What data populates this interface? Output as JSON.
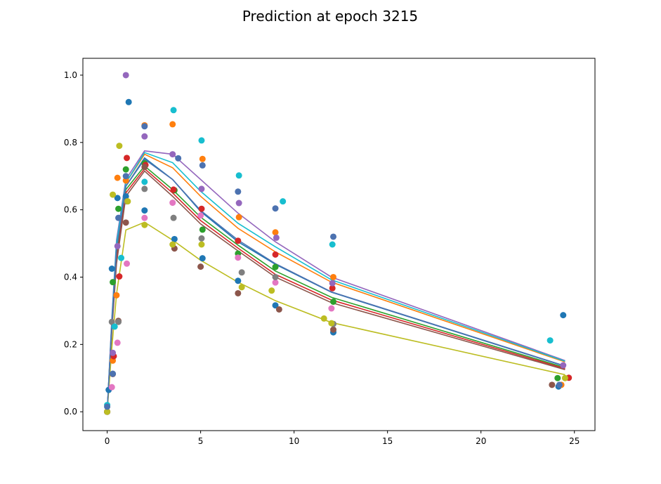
{
  "chart_data": {
    "type": "scatter",
    "title": "Prediction at epoch 3215",
    "xlabel": "",
    "ylabel": "",
    "xlim": [
      -1.3,
      26.1
    ],
    "ylim": [
      -0.056,
      1.05
    ],
    "x_ticks": [
      0,
      5,
      10,
      15,
      20,
      25
    ],
    "x_tick_labels": [
      "0",
      "5",
      "10",
      "15",
      "20",
      "25"
    ],
    "y_ticks": [
      0.0,
      0.2,
      0.4,
      0.6,
      0.8,
      1.0
    ],
    "y_tick_labels": [
      "0.0",
      "0.2",
      "0.4",
      "0.6",
      "0.8",
      "1.0"
    ],
    "grid": false,
    "line_x": [
      0,
      0.25,
      0.5,
      1,
      2,
      3.5,
      5,
      7,
      9,
      12,
      24.5
    ],
    "lines": [
      {
        "color": "#1f77b4",
        "y": [
          0.0,
          0.26,
          0.48,
          0.67,
          0.754,
          0.69,
          0.595,
          0.505,
          0.438,
          0.355,
          0.135
        ]
      },
      {
        "color": "#ff7f0e",
        "y": [
          0.0,
          0.27,
          0.5,
          0.68,
          0.765,
          0.725,
          0.64,
          0.545,
          0.475,
          0.385,
          0.148
        ]
      },
      {
        "color": "#2ca02c",
        "y": [
          0.0,
          0.25,
          0.46,
          0.66,
          0.73,
          0.66,
          0.578,
          0.495,
          0.418,
          0.34,
          0.131
        ]
      },
      {
        "color": "#d62728",
        "y": [
          0.0,
          0.25,
          0.45,
          0.65,
          0.722,
          0.65,
          0.568,
          0.486,
          0.408,
          0.332,
          0.128
        ]
      },
      {
        "color": "#9467bd",
        "y": [
          0.0,
          0.28,
          0.51,
          0.69,
          0.775,
          0.765,
          0.69,
          0.59,
          0.505,
          0.4,
          0.152
        ]
      },
      {
        "color": "#8c564b",
        "y": [
          0.0,
          0.24,
          0.44,
          0.64,
          0.715,
          0.64,
          0.558,
          0.478,
          0.4,
          0.324,
          0.125
        ]
      },
      {
        "color": "#17becf",
        "y": [
          0.0,
          0.27,
          0.5,
          0.68,
          0.77,
          0.74,
          0.655,
          0.56,
          0.49,
          0.392,
          0.15
        ]
      },
      {
        "color": "#bcbd22",
        "y": [
          0.0,
          0.19,
          0.35,
          0.54,
          0.563,
          0.51,
          0.45,
          0.385,
          0.33,
          0.265,
          0.11
        ]
      },
      {
        "color": "#4c72b0",
        "y": [
          0.0,
          0.26,
          0.48,
          0.67,
          0.75,
          0.69,
          0.598,
          0.51,
          0.44,
          0.356,
          0.136
        ]
      }
    ],
    "points": [
      {
        "color": "#1f77b4",
        "x": [
          0,
          0.08,
          0.25,
          0.55,
          1.0,
          1.15,
          2.0,
          3.6,
          5.1,
          7.0,
          9.0,
          12.1,
          24.15,
          24.4
        ],
        "y": [
          0.0,
          0.065,
          0.425,
          0.635,
          0.64,
          0.92,
          0.598,
          0.513,
          0.456,
          0.389,
          0.316,
          0.236,
          0.075,
          0.287
        ]
      },
      {
        "color": "#ff7f0e",
        "x": [
          0,
          0.3,
          0.5,
          0.55,
          1.0,
          2.0,
          3.5,
          5.1,
          7.05,
          9.0,
          12.1,
          24.3
        ],
        "y": [
          0.0,
          0.152,
          0.346,
          0.695,
          0.687,
          0.851,
          0.854,
          0.751,
          0.578,
          0.533,
          0.4,
          0.08
        ]
      },
      {
        "color": "#2ca02c",
        "x": [
          0,
          0.3,
          0.6,
          1.0,
          2.0,
          3.6,
          5.1,
          7.0,
          9.0,
          12.1,
          24.1
        ],
        "y": [
          0.0,
          0.385,
          0.603,
          0.72,
          0.738,
          0.658,
          0.541,
          0.47,
          0.43,
          0.327,
          0.1
        ]
      },
      {
        "color": "#d62728",
        "x": [
          0,
          0.35,
          0.65,
          1.05,
          2.05,
          3.55,
          5.05,
          7.0,
          9.0,
          12.05,
          24.7
        ],
        "y": [
          0.0,
          0.165,
          0.402,
          0.754,
          0.733,
          0.66,
          0.603,
          0.508,
          0.467,
          0.367,
          0.101
        ]
      },
      {
        "color": "#9467bd",
        "x": [
          0,
          0.3,
          0.55,
          1.0,
          2.0,
          3.5,
          5.05,
          7.05,
          9.05,
          12.05,
          24.4
        ],
        "y": [
          0.0,
          0.175,
          0.492,
          1.0,
          0.818,
          0.765,
          0.662,
          0.62,
          0.517,
          0.382,
          0.138
        ]
      },
      {
        "color": "#8c564b",
        "x": [
          0,
          0.3,
          0.6,
          1.0,
          2.0,
          3.6,
          5.0,
          7.0,
          9.2,
          12.1,
          23.8
        ],
        "y": [
          0.0,
          0.112,
          0.27,
          0.562,
          0.727,
          0.485,
          0.431,
          0.352,
          0.304,
          0.244,
          0.08
        ]
      },
      {
        "color": "#e377c2",
        "x": [
          0,
          0.25,
          0.55,
          1.05,
          2.0,
          3.5,
          5.0,
          7.0,
          9.0,
          12.0
        ],
        "y": [
          0.0,
          0.073,
          0.205,
          0.44,
          0.576,
          0.621,
          0.583,
          0.458,
          0.384,
          0.307
        ]
      },
      {
        "color": "#7f7f7f",
        "x": [
          0,
          0.25,
          0.6,
          1.05,
          2.0,
          3.55,
          5.05,
          7.2,
          9.0,
          12.1
        ],
        "y": [
          0.0,
          0.267,
          0.267,
          0.625,
          0.662,
          0.576,
          0.515,
          0.414,
          0.4,
          0.261
        ]
      },
      {
        "color": "#bcbd22",
        "x": [
          0,
          0.3,
          0.65,
          1.1,
          2.0,
          3.5,
          5.05,
          7.2,
          8.8,
          11.6,
          12.0,
          24.5
        ],
        "y": [
          0.0,
          0.645,
          0.79,
          0.625,
          0.555,
          0.497,
          0.497,
          0.37,
          0.36,
          0.277,
          0.263,
          0.1
        ]
      },
      {
        "color": "#17becf",
        "x": [
          0,
          0.4,
          0.75,
          2.0,
          3.55,
          5.05,
          7.05,
          9.4,
          12.05,
          23.7
        ],
        "y": [
          0.02,
          0.253,
          0.457,
          0.683,
          0.896,
          0.806,
          0.702,
          0.625,
          0.497,
          0.212
        ]
      },
      {
        "color": "#4c72b0",
        "x": [
          0,
          0.3,
          0.6,
          1.0,
          2.0,
          3.8,
          5.1,
          7.0,
          9.0,
          12.1,
          24.2
        ],
        "y": [
          0.015,
          0.113,
          0.576,
          0.7,
          0.848,
          0.753,
          0.732,
          0.654,
          0.604,
          0.52,
          0.08
        ]
      }
    ]
  }
}
